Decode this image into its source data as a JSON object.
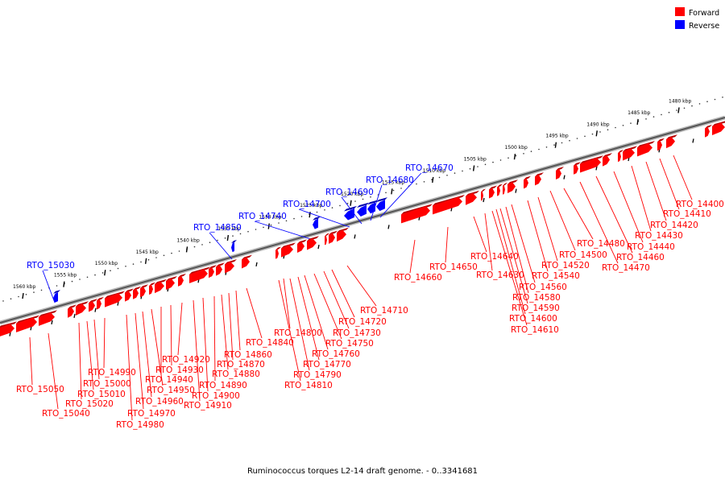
{
  "caption": "Ruminococcus torques L2-14 draft genome. - 0..3341681",
  "legend": {
    "forward_label": "Forward",
    "reverse_label": "Reverse",
    "forward_color": "#ff0000",
    "reverse_color": "#0000ff"
  },
  "scale_ticks": [
    {
      "label": "1480 kbp",
      "kbp": 1480
    },
    {
      "label": "1485 kbp",
      "kbp": 1485
    },
    {
      "label": "1490 kbp",
      "kbp": 1490
    },
    {
      "label": "1495 kbp",
      "kbp": 1495
    },
    {
      "label": "1500 kbp",
      "kbp": 1500
    },
    {
      "label": "1505 kbp",
      "kbp": 1505
    },
    {
      "label": "1510 kbp",
      "kbp": 1510
    },
    {
      "label": "1515 kbp",
      "kbp": 1515
    },
    {
      "label": "1520 kbp",
      "kbp": 1520
    },
    {
      "label": "1525 kbp",
      "kbp": 1525
    },
    {
      "label": "1530 kbp",
      "kbp": 1530
    },
    {
      "label": "1535 kbp",
      "kbp": 1535
    },
    {
      "label": "1540 kbp",
      "kbp": 1540
    },
    {
      "label": "1545 kbp",
      "kbp": 1545
    },
    {
      "label": "1550 kbp",
      "kbp": 1550
    },
    {
      "label": "1555 kbp",
      "kbp": 1555
    },
    {
      "label": "1560 kbp",
      "kbp": 1560
    }
  ],
  "reverse_genes": [
    "RTO_14670",
    "RTO_14680",
    "RTO_14690",
    "RTO_14700",
    "RTO_14740",
    "RTO_14850",
    "RTO_15030"
  ],
  "forward_genes": [
    "RTO_14400",
    "RTO_14410",
    "RTO_14420",
    "RTO_14430",
    "RTO_14440",
    "RTO_14460",
    "RTO_14470",
    "RTO_14480",
    "RTO_14500",
    "RTO_14520",
    "RTO_14540",
    "RTO_14560",
    "RTO_14580",
    "RTO_14590",
    "RTO_14600",
    "RTO_14610",
    "RTO_14630",
    "RTO_14640",
    "RTO_14650",
    "RTO_14660",
    "RTO_14710",
    "RTO_14720",
    "RTO_14730",
    "RTO_14750",
    "RTO_14760",
    "RTO_14770",
    "RTO_14790",
    "RTO_14800",
    "RTO_14810",
    "RTO_14840",
    "RTO_14860",
    "RTO_14870",
    "RTO_14880",
    "RTO_14890",
    "RTO_14900",
    "RTO_14910",
    "RTO_14920",
    "RTO_14930",
    "RTO_14940",
    "RTO_14950",
    "RTO_14960",
    "RTO_14970",
    "RTO_14980",
    "RTO_14990",
    "RTO_15000",
    "RTO_15010",
    "RTO_15020",
    "RTO_15040",
    "RTO_15050"
  ]
}
